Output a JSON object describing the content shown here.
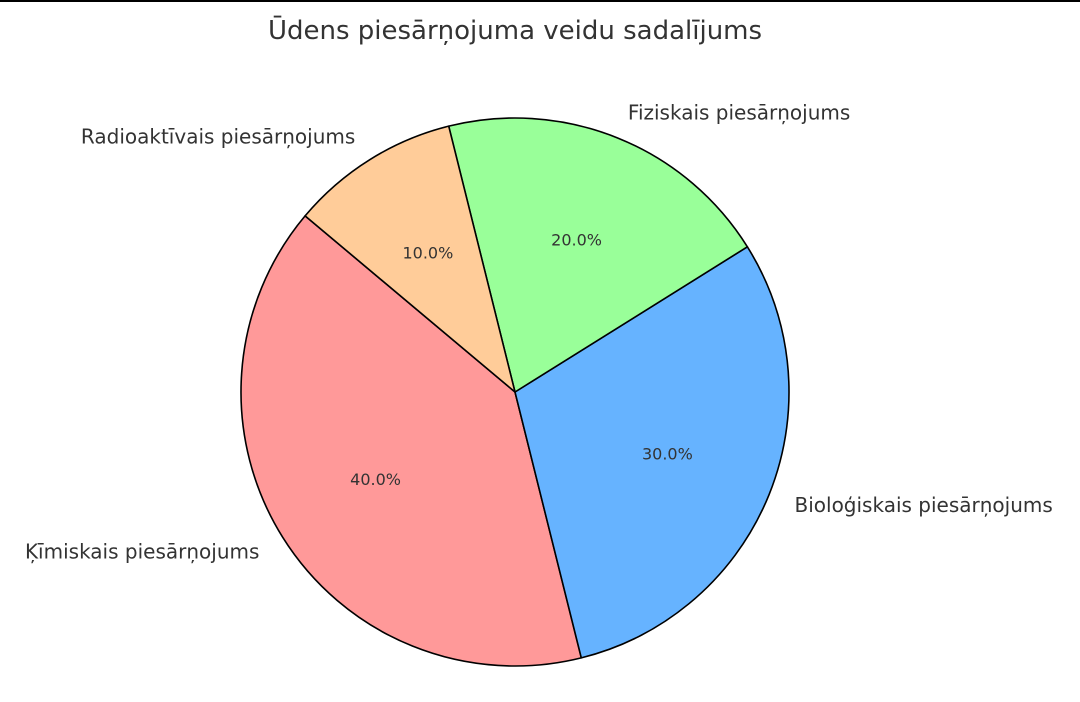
{
  "chart_data": {
    "type": "pie",
    "title": "Ūdens piesārņojuma veidu sadalījums",
    "slices": [
      {
        "label": "Ķīmiskais piesārņojums",
        "value": 40,
        "pct_label": "40.0%",
        "color": "#ff9999"
      },
      {
        "label": "Bioloģiskais piesārņojums",
        "value": 30,
        "pct_label": "30.0%",
        "color": "#66b3ff"
      },
      {
        "label": "Fiziskais piesārņojums",
        "value": 20,
        "pct_label": "20.0%",
        "color": "#99ff99"
      },
      {
        "label": "Radioaktīvais piesārņojums",
        "value": 10,
        "pct_label": "10.0%",
        "color": "#ffcc99"
      }
    ],
    "start_angle_deg": 140,
    "direction": "counterclockwise",
    "legend": "none"
  }
}
